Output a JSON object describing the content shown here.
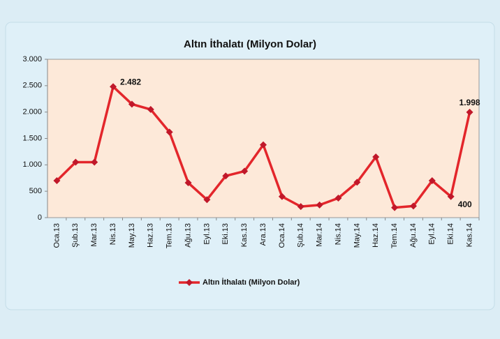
{
  "chart_data": {
    "type": "line",
    "title": "Altın İthalatı (Milyon Dolar)",
    "categories": [
      "Oca.13",
      "Şub.13",
      "Mar.13",
      "Nis.13",
      "May.13",
      "Haz.13",
      "Tem.13",
      "Ağu.13",
      "Eyl.13",
      "Eki.13",
      "Kas.13",
      "Ara.13",
      "Oca.14",
      "Şub.14",
      "Mar.14",
      "Nis.14",
      "May.14",
      "Haz.14",
      "Tem.14",
      "Ağu.14",
      "Eyl.14",
      "Eki.14",
      "Kas.14"
    ],
    "series": [
      {
        "name": "Altın İthalatı (Milyon Dolar)",
        "color": "#e3262b",
        "values": [
          700,
          1050,
          1050,
          2482,
          2150,
          2050,
          1620,
          660,
          340,
          790,
          880,
          1380,
          400,
          210,
          240,
          370,
          670,
          1150,
          190,
          220,
          700,
          400,
          1998
        ],
        "value_labels": [
          null,
          null,
          null,
          "2.482",
          null,
          null,
          null,
          null,
          null,
          null,
          null,
          null,
          null,
          null,
          null,
          null,
          null,
          null,
          null,
          null,
          null,
          "400",
          "1.998"
        ]
      }
    ],
    "ylim": [
      0,
      3000
    ],
    "yticks": [
      0,
      {
        "value": 500,
        "label": "500"
      },
      {
        "value": 1000,
        "label": "1.000"
      },
      {
        "value": 1500,
        "label": "1.500"
      },
      {
        "value": 2000,
        "label": "2.000"
      },
      {
        "value": 2500,
        "label": "2.500"
      },
      {
        "value": 3000,
        "label": "3.000"
      }
    ],
    "grid": false,
    "legend": "bottom"
  }
}
